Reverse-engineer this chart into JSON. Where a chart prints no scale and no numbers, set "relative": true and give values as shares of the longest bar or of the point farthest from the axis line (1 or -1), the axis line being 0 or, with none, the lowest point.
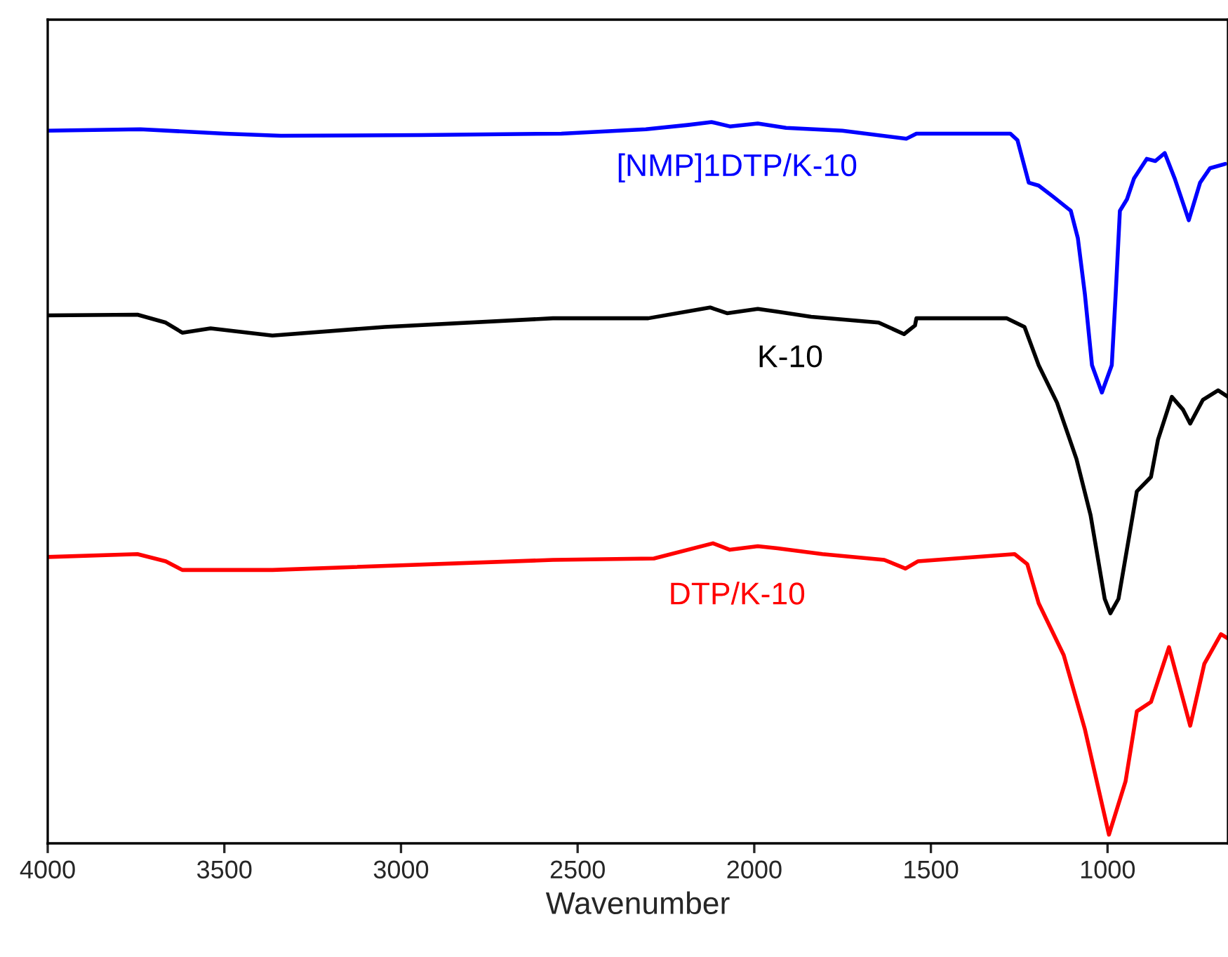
{
  "chart_data": {
    "type": "line",
    "xlabel": "Wavenumber",
    "relative": true,
    "legend": false,
    "grid": false,
    "marker": "none",
    "line_style": "solid",
    "xlim": [
      4000,
      659
    ],
    "xticks": [
      4000,
      3500,
      3000,
      2500,
      2000,
      1500,
      1000
    ],
    "series": [
      {
        "name": "[NMP]1DTP/K-10",
        "color": "#0000ff",
        "x": [
          4000,
          3738,
          3499,
          3340,
          2943,
          2546,
          2307,
          2188,
          2121,
          2069,
          1990,
          1910,
          1751,
          1569,
          1541,
          1275,
          1255,
          1223,
          1195,
          1155,
          1104,
          1084,
          1064,
          1044,
          1016,
          988,
          977,
          965,
          945,
          925,
          889,
          865,
          838,
          810,
          770,
          738,
          710,
          667
        ],
        "values": [
          0.988,
          0.99,
          0.984,
          0.981,
          0.982,
          0.984,
          0.99,
          0.996,
          1.0,
          0.994,
          0.998,
          0.992,
          0.988,
          0.977,
          0.984,
          0.984,
          0.975,
          0.916,
          0.912,
          0.897,
          0.877,
          0.839,
          0.761,
          0.663,
          0.625,
          0.663,
          0.761,
          0.877,
          0.893,
          0.922,
          0.949,
          0.946,
          0.957,
          0.922,
          0.864,
          0.916,
          0.936,
          0.942
        ]
      },
      {
        "name": "K-10",
        "color": "#000000",
        "x": [
          4000,
          3746,
          3666,
          3619,
          3539,
          3364,
          3046,
          2570,
          2300,
          2125,
          2077,
          1990,
          1934,
          1839,
          1648,
          1576,
          1545,
          1541,
          1286,
          1235,
          1195,
          1143,
          1088,
          1048,
          1008,
          992,
          969,
          917,
          877,
          857,
          818,
          786,
          766,
          730,
          687,
          659
        ],
        "values": [
          0.732,
          0.733,
          0.722,
          0.708,
          0.714,
          0.704,
          0.716,
          0.728,
          0.728,
          0.743,
          0.735,
          0.741,
          0.737,
          0.73,
          0.722,
          0.706,
          0.718,
          0.728,
          0.728,
          0.716,
          0.663,
          0.611,
          0.533,
          0.455,
          0.339,
          0.319,
          0.339,
          0.488,
          0.508,
          0.56,
          0.619,
          0.601,
          0.582,
          0.615,
          0.628,
          0.619
        ]
      },
      {
        "name": "DTP/K-10",
        "color": "#ff0000",
        "x": [
          4000,
          3746,
          3666,
          3619,
          3364,
          2570,
          2284,
          2117,
          2069,
          1990,
          1934,
          1807,
          1632,
          1572,
          1537,
          1263,
          1227,
          1195,
          1124,
          1064,
          996,
          949,
          917,
          877,
          826,
          766,
          726,
          679,
          659
        ],
        "values": [
          0.397,
          0.401,
          0.391,
          0.379,
          0.379,
          0.393,
          0.395,
          0.416,
          0.407,
          0.412,
          0.409,
          0.401,
          0.393,
          0.381,
          0.391,
          0.401,
          0.387,
          0.333,
          0.261,
          0.158,
          0.012,
          0.086,
          0.183,
          0.196,
          0.272,
          0.163,
          0.249,
          0.29,
          0.284
        ]
      }
    ]
  }
}
